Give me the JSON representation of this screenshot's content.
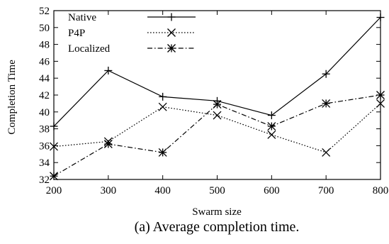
{
  "chart_data": {
    "type": "line",
    "title": "",
    "caption": "(a) Average completion time.",
    "xlabel": "Swarm size",
    "ylabel": "Completion Time",
    "x": [
      200,
      300,
      400,
      500,
      600,
      700,
      800
    ],
    "xlim": [
      200,
      800
    ],
    "ylim": [
      32,
      52
    ],
    "xticks": [
      "200",
      "300",
      "400",
      "500",
      "600",
      "700",
      "800"
    ],
    "yticks": [
      "32",
      "34",
      "36",
      "38",
      "40",
      "42",
      "44",
      "46",
      "48",
      "50",
      "52"
    ],
    "grid": false,
    "legend_position": "top-left",
    "series": [
      {
        "name": "Native",
        "line": "solid",
        "marker": "plus",
        "values": [
          38.3,
          44.9,
          41.8,
          41.3,
          39.6,
          44.5,
          51.2
        ]
      },
      {
        "name": "P4P",
        "line": "dotted",
        "marker": "x",
        "values": [
          35.9,
          36.5,
          40.6,
          39.6,
          37.3,
          35.2,
          41.0
        ]
      },
      {
        "name": "Localized",
        "line": "dashdot",
        "marker": "star",
        "values": [
          32.4,
          36.2,
          35.2,
          40.9,
          38.3,
          41.0,
          42.0
        ]
      }
    ]
  }
}
